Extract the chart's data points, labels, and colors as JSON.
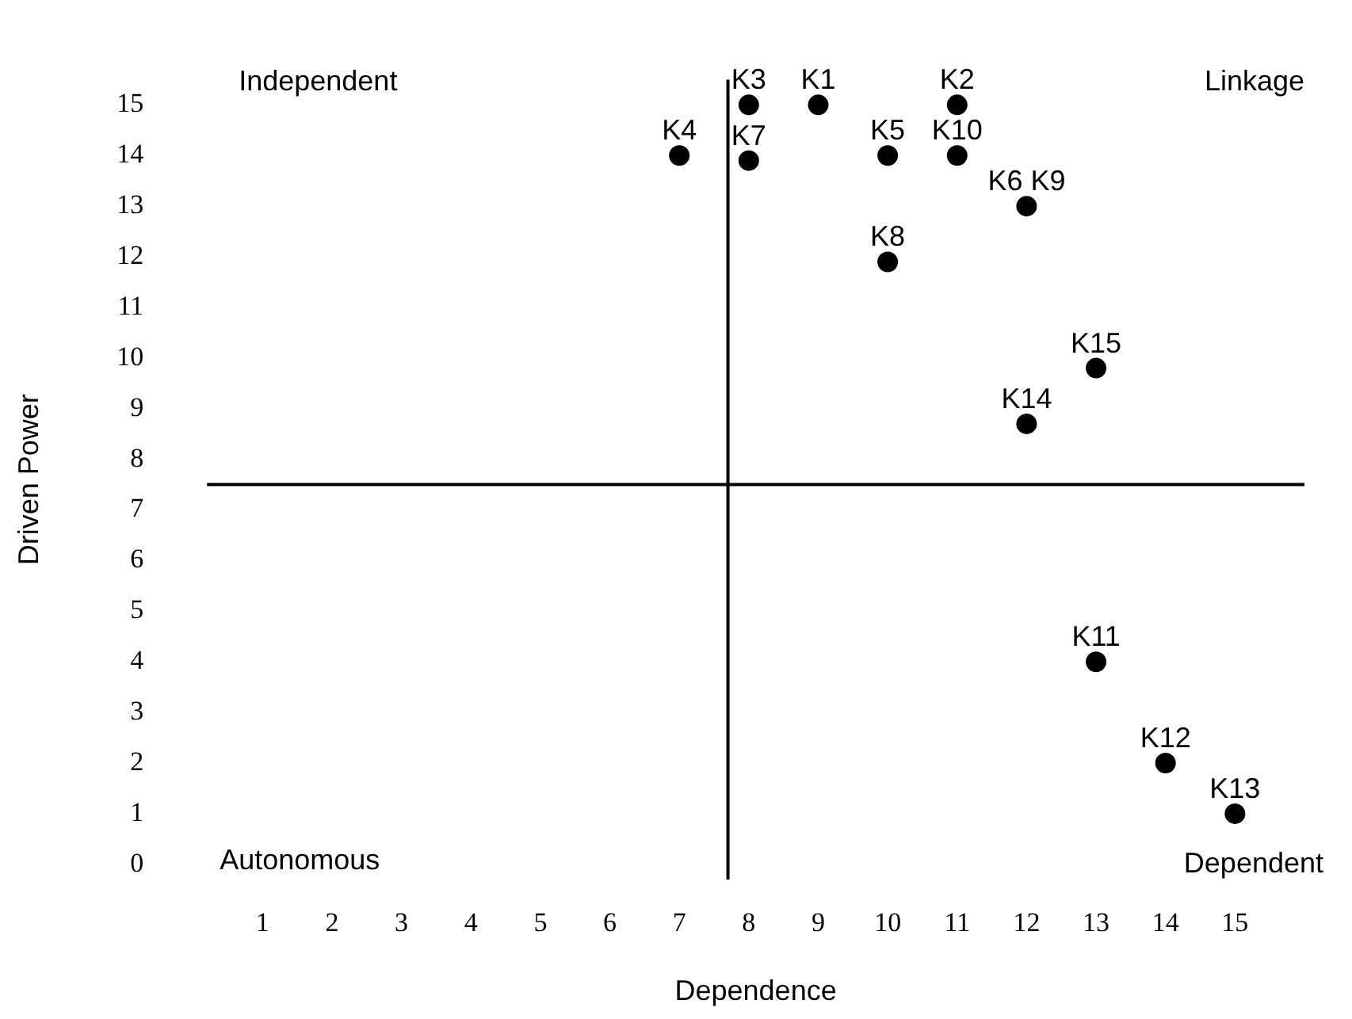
{
  "chart_data": {
    "type": "scatter",
    "xlabel": "Dependence",
    "ylabel": "Driven Power",
    "x": [
      9,
      11,
      8,
      7,
      10,
      12,
      8,
      10,
      11,
      13,
      14,
      15,
      12,
      13
    ],
    "series": [
      {
        "color": "#000000",
        "values": [
          15,
          15,
          15,
          14,
          14,
          13,
          13.9,
          11.9,
          14,
          4,
          2,
          1,
          8.7,
          9.8
        ]
      }
    ],
    "xlim": [
      0.2,
      16
    ],
    "ylim": [
      -0.3,
      15.5
    ],
    "xticks": [
      1,
      2,
      3,
      4,
      5,
      6,
      7,
      8,
      9,
      10,
      11,
      12,
      13,
      14,
      15
    ],
    "yticks": [
      0,
      1,
      2,
      3,
      4,
      5,
      6,
      7,
      8,
      9,
      10,
      11,
      12,
      13,
      14,
      15
    ],
    "ref_lines": [
      {
        "axis": "x",
        "value": 7.7,
        "color": "#000000"
      },
      {
        "axis": "y",
        "value": 7.5,
        "color": "#000000"
      }
    ],
    "annotations": [
      "Independent",
      "Linkage",
      "Autonomous",
      "Dependent",
      {
        "text": "K1",
        "x": 9,
        "y": 15
      },
      {
        "text": "K2",
        "x": 11,
        "y": 15
      },
      {
        "text": "K3",
        "x": 8,
        "y": 15
      },
      {
        "text": "K4",
        "x": 7,
        "y": 14
      },
      {
        "text": "K5",
        "x": 10,
        "y": 14
      },
      {
        "text": "K6 K9",
        "x": 12,
        "y": 13
      },
      {
        "text": "K7",
        "x": 8,
        "y": 13.9
      },
      {
        "text": "K8",
        "x": 10,
        "y": 11.9
      },
      {
        "text": "K10",
        "x": 11,
        "y": 14
      },
      {
        "text": "K11",
        "x": 13,
        "y": 4
      },
      {
        "text": "K12",
        "x": 14,
        "y": 2
      },
      {
        "text": "K13",
        "x": 15,
        "y": 1
      },
      {
        "text": "K14",
        "x": 12,
        "y": 8.7
      },
      {
        "text": "K15",
        "x": 13,
        "y": 9.8
      }
    ],
    "marker": "circle",
    "grid": false,
    "legend": false
  }
}
